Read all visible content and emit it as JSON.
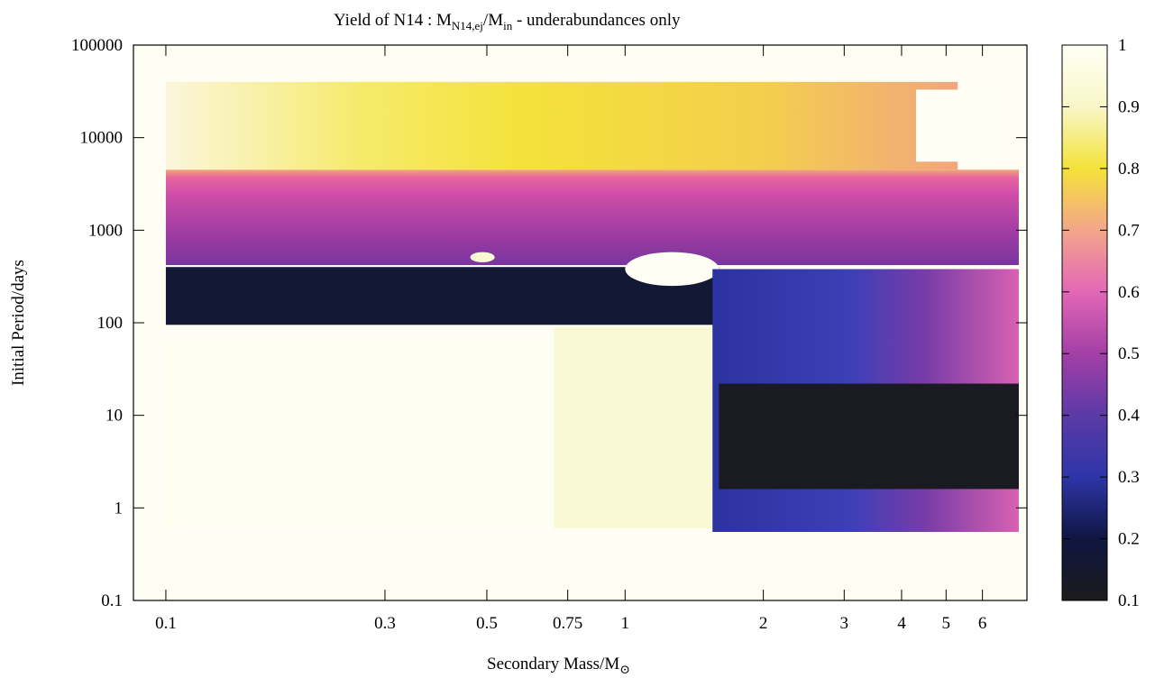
{
  "chart_data": {
    "type": "heatmap",
    "title": {
      "prefix": "Yield of N14 : M",
      "sub1": "N14,ej",
      "mid": "/M",
      "sub2": "in",
      "suffix": " - underabundances only"
    },
    "xlabel": {
      "main": "Secondary Mass/M",
      "sub": "⊙"
    },
    "ylabel": "Initial Period/days",
    "x_scale": "log",
    "y_scale": "log",
    "xlim": [
      0.085,
      7.5
    ],
    "ylim": [
      0.1,
      100000
    ],
    "x_ticks": [
      {
        "value": 0.1,
        "label": "0.1"
      },
      {
        "value": 0.3,
        "label": "0.3"
      },
      {
        "value": 0.5,
        "label": "0.5"
      },
      {
        "value": 0.75,
        "label": "0.75"
      },
      {
        "value": 1,
        "label": "1"
      },
      {
        "value": 2,
        "label": "2"
      },
      {
        "value": 3,
        "label": "3"
      },
      {
        "value": 4,
        "label": "4"
      },
      {
        "value": 5,
        "label": "5"
      },
      {
        "value": 6,
        "label": "6"
      }
    ],
    "y_ticks": [
      {
        "value": 0.1,
        "label": "0.1"
      },
      {
        "value": 1,
        "label": "1"
      },
      {
        "value": 10,
        "label": "10"
      },
      {
        "value": 100,
        "label": "100"
      },
      {
        "value": 1000,
        "label": "1000"
      },
      {
        "value": 10000,
        "label": "10000"
      },
      {
        "value": 100000,
        "label": "100000"
      }
    ],
    "colorbar": {
      "range": [
        0.1,
        1
      ],
      "ticks": [
        {
          "value": 0.1,
          "label": "0.1"
        },
        {
          "value": 0.2,
          "label": "0.2"
        },
        {
          "value": 0.3,
          "label": "0.3"
        },
        {
          "value": 0.4,
          "label": "0.4"
        },
        {
          "value": 0.5,
          "label": "0.5"
        },
        {
          "value": 0.6,
          "label": "0.6"
        },
        {
          "value": 0.7,
          "label": "0.7"
        },
        {
          "value": 0.8,
          "label": "0.8"
        },
        {
          "value": 0.9,
          "label": "0.9"
        },
        {
          "value": 1,
          "label": "1"
        }
      ],
      "palette": [
        "#1b1b1b",
        "#0f1640",
        "#2e35a8",
        "#5b3aa6",
        "#a43fa6",
        "#e267b6",
        "#f3a68a",
        "#f4e23a",
        "#f8f7c8",
        "#fffff5"
      ]
    },
    "regions": [
      {
        "name": "long-period-band",
        "x": [
          0.1,
          5.3
        ],
        "y": [
          4500,
          40000
        ],
        "value": [
          0.97,
          0.78
        ]
      },
      {
        "name": "high-mass-long-period-white",
        "x": [
          4.3,
          6.6
        ],
        "y": [
          5500,
          33000
        ],
        "value": 1.0
      },
      {
        "name": "magenta-band",
        "x": [
          0.1,
          7.2
        ],
        "y": [
          420,
          4500
        ],
        "value": 0.55
      },
      {
        "name": "dark-navy-band",
        "x": [
          0.1,
          1.6
        ],
        "y": [
          95,
          400
        ],
        "value": 0.17
      },
      {
        "name": "yellow-pocket-small",
        "x": [
          0.46,
          0.52
        ],
        "y": [
          450,
          580
        ],
        "value": 0.93
      },
      {
        "name": "white-pocket",
        "x": [
          1.0,
          1.6
        ],
        "y": [
          250,
          580
        ],
        "value": 1.0
      },
      {
        "name": "short-period-white",
        "x": [
          0.1,
          0.7
        ],
        "y": [
          0.6,
          65
        ],
        "value": 0.99
      },
      {
        "name": "yellow-strip",
        "x": [
          0.7,
          1.55
        ],
        "y": [
          0.6,
          90
        ],
        "value": 0.93
      },
      {
        "name": "blue-block",
        "x": [
          1.55,
          7.2
        ],
        "y": [
          0.55,
          380
        ],
        "value": 0.3
      },
      {
        "name": "black-patch",
        "x": [
          1.6,
          7.2
        ],
        "y": [
          1.6,
          22
        ],
        "value": 0.12
      }
    ]
  }
}
